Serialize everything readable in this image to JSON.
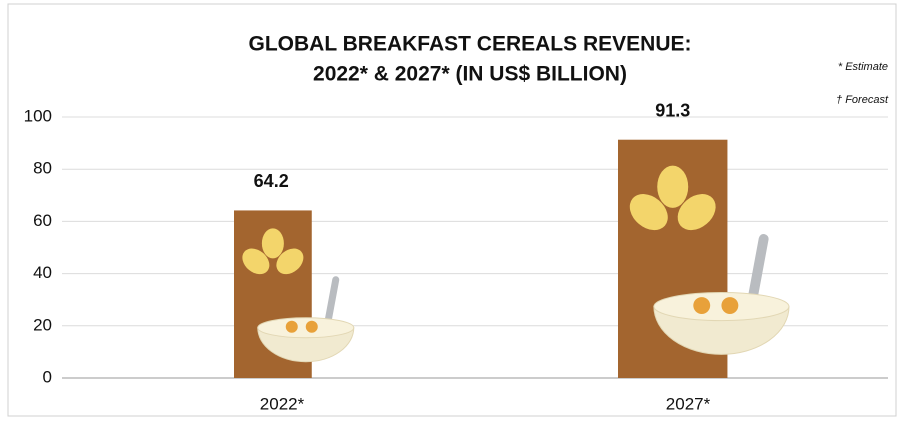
{
  "chart_data": {
    "type": "bar",
    "title": "GLOBAL BREAKFAST CEREALS REVENUE:",
    "subtitle": "2022* & 2027* (IN US$ BILLION)",
    "notes": [
      "* Estimate",
      "† Forecast"
    ],
    "categories": [
      "2022*",
      "2027*"
    ],
    "values": [
      64.2,
      91.3
    ],
    "color": "#a3652f",
    "ylim": [
      0,
      100
    ],
    "yticks": [
      0,
      20,
      40,
      60,
      80,
      100
    ],
    "grid": true
  }
}
